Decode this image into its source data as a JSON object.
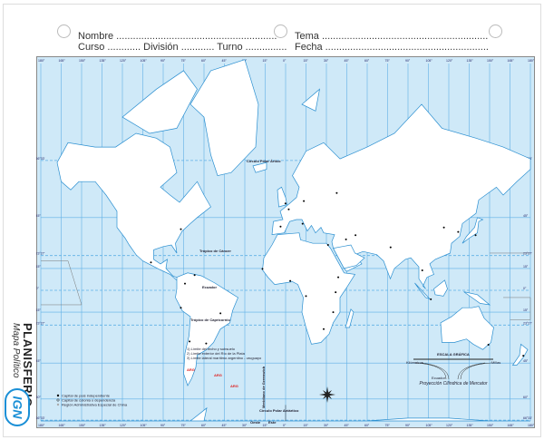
{
  "header": {
    "nombre": "Nombre ..........................................................",
    "curso": "Curso ............",
    "division": "División ............",
    "turno": "Turno ...............",
    "tema": "Tema ............................................................",
    "fecha": "Fecha ..........................................................."
  },
  "title": {
    "main": "PLANISFERIO",
    "sub": "Mapa Político",
    "logo": "IGN"
  },
  "map": {
    "colors": {
      "ocean": "#cfe9f8",
      "land": "#ffffff",
      "coast": "#2b8fd0",
      "grid": "#5fb0e6",
      "border": "#888888"
    },
    "lines": {
      "arctic": "Círculo Polar Ártico",
      "cancer": "Trópico de Cáncer",
      "equator": "Ecuador",
      "capricorn": "Trópico de Capricornio",
      "antarctic": "Círculo Polar Antártico",
      "greenwich": "Meridiano de Greenwich"
    },
    "lat_labels": [
      "66°33'",
      "45°",
      "23°27'",
      "15°",
      "0°",
      "15°",
      "23°27'",
      "45°",
      "60°",
      "66°33'"
    ],
    "lon_labels": [
      "180°",
      "165°",
      "150°",
      "135°",
      "120°",
      "105°",
      "90°",
      "75°",
      "60°",
      "45°",
      "30°",
      "15°",
      "0°",
      "15°",
      "30°",
      "45°",
      "60°",
      "75°",
      "90°",
      "105°",
      "120°",
      "135°",
      "150°",
      "165°",
      "180°"
    ],
    "west": "Oeste",
    "east": "Este",
    "arg_labels": [
      "ARG",
      "ARG",
      "ARG"
    ],
    "notes": [
      "1) Límite del lecho y subsuelo",
      "2) Límite exterior del Río de la Plata",
      "3) Límite lateral marítimo argentino - uruguayo"
    ],
    "legend": [
      "Capital de país independiente",
      "Capital de colonia o dependencia",
      "Región Administrativa Especial de China"
    ],
    "scale": {
      "title": "ESCALA GRÁFICA",
      "projection": "Proyección Cilíndrica de Mercator",
      "left_unit": "Kilómetros",
      "right_unit": "Millas",
      "equator_label": "Ecuador"
    }
  }
}
